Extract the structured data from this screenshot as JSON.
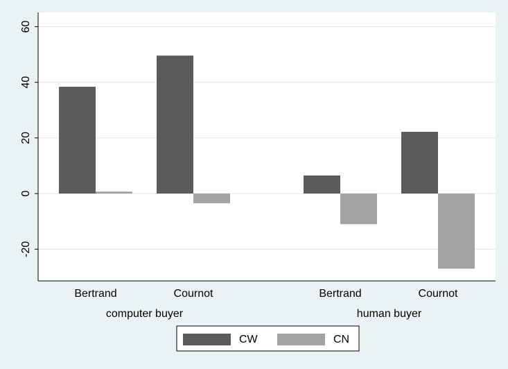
{
  "chart_data": {
    "type": "bar",
    "categories": [
      "Bertrand",
      "Cournot",
      "Bertrand",
      "Cournot"
    ],
    "groups": [
      "computer buyer",
      "human buyer"
    ],
    "series": [
      {
        "name": "CW",
        "color": "#5b5b5b",
        "values": [
          38.4,
          49.6,
          6.5,
          22.2
        ]
      },
      {
        "name": "CN",
        "color": "#a3a3a3",
        "values": [
          0.7,
          -3.5,
          -11,
          -27
        ]
      }
    ],
    "ylim": [
      -31.4,
      65.1
    ],
    "yticks": [
      -20,
      0,
      20,
      40,
      60
    ],
    "grid": true,
    "legend": "bottom"
  }
}
